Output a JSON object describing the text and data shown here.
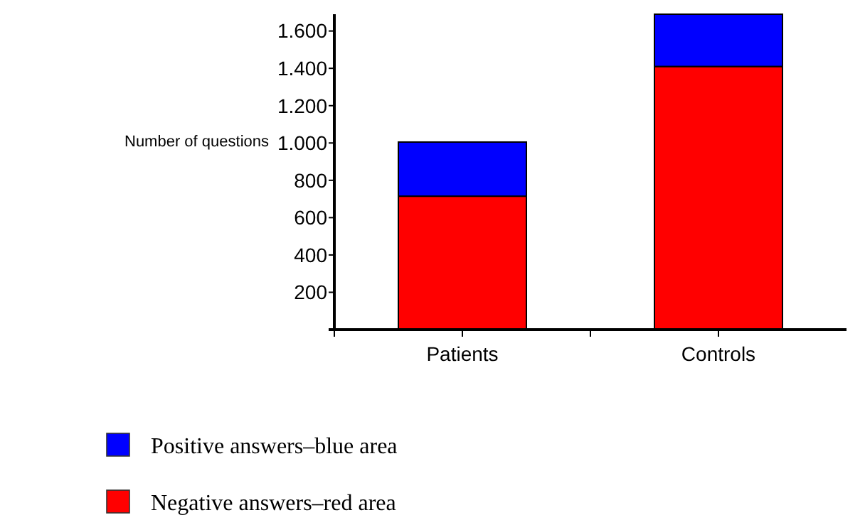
{
  "chart_data": {
    "type": "bar",
    "stacked": true,
    "ylabel": "Number of questions",
    "categories": [
      "Patients",
      "Controls"
    ],
    "series": [
      {
        "name": "Negative answers–red area",
        "color": "#ff0000",
        "values": [
          715,
          1410
        ]
      },
      {
        "name": "Positive answers–blue area",
        "color": "#0000ff",
        "values": [
          290,
          280
        ]
      }
    ],
    "ylim": [
      0,
      1690
    ],
    "yticks": [
      {
        "value": 200,
        "label": "200"
      },
      {
        "value": 400,
        "label": "400"
      },
      {
        "value": 600,
        "label": "600"
      },
      {
        "value": 800,
        "label": "800"
      },
      {
        "value": 1000,
        "label": "1.000"
      },
      {
        "value": 1200,
        "label": "1.200"
      },
      {
        "value": 1400,
        "label": "1.400"
      },
      {
        "value": 1600,
        "label": "1.600"
      }
    ],
    "grid": false,
    "legend": "bottom"
  }
}
